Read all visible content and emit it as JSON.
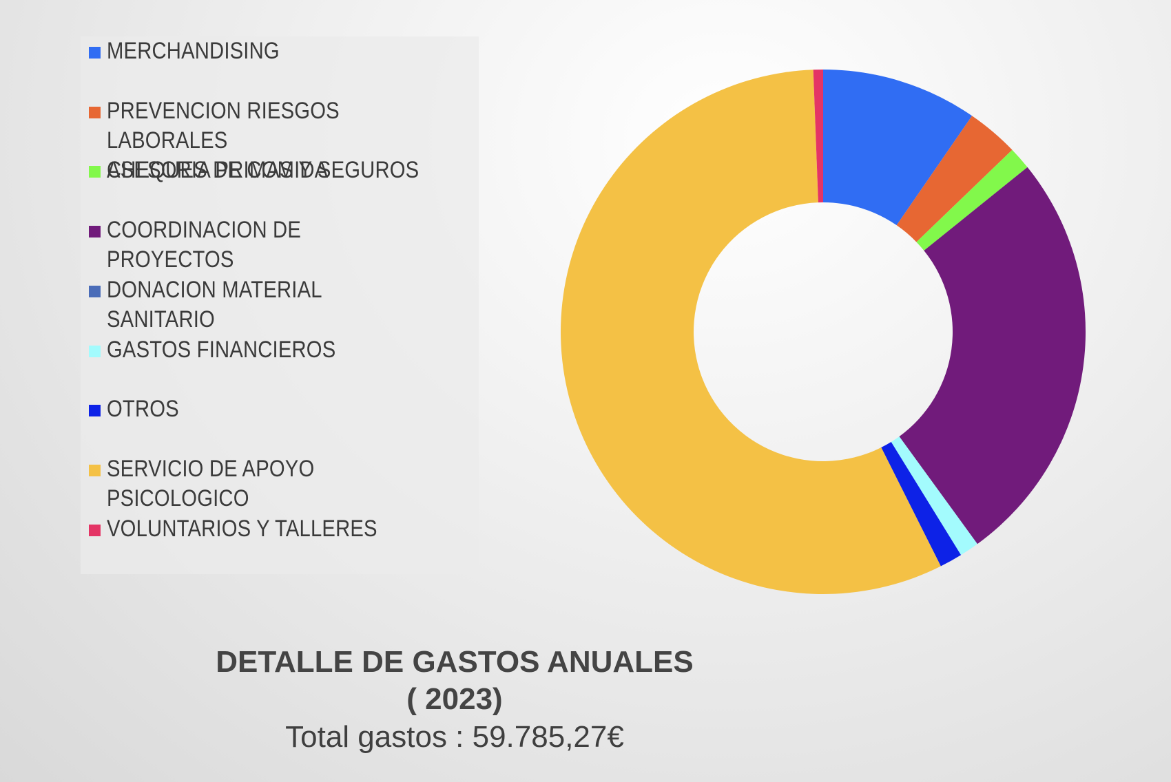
{
  "chart_data": {
    "type": "pie",
    "title": "DETALLE DE GASTOS ANUALES",
    "subtitle": "( 2023)",
    "total_text": "Total gastos : 59.785,27€",
    "legend_position": "left",
    "slices": [
      {
        "label": " MERCHANDISING",
        "value": 9.6,
        "color": "#306df3"
      },
      {
        "label": " PREVENCION RIESGOS LABORALES\nASESORIA PRIMAS Y SEGUROS",
        "value": 3.2,
        "color": "#e76733"
      },
      {
        "label": "CHEQUES DE COMIDA",
        "value": 1.4,
        "color": "#82f84b"
      },
      {
        "label": "COORDINACION DE PROYECTOS",
        "value": 25.8,
        "color": "#711b7b"
      },
      {
        "label": "DONACION MATERIAL SANITARIO",
        "value": 0.0,
        "color": "#4a6cb8"
      },
      {
        "label": "GASTOS FINANCIEROS",
        "value": 1.2,
        "color": "#a3fbfd"
      },
      {
        "label": "OTROS",
        "value": 1.4,
        "color": "#0d22e7"
      },
      {
        "label": "SERVICIO DE APOYO PSICOLOGICO",
        "value": 56.8,
        "color": "#f4c145"
      },
      {
        "label": "VOLUNTARIOS Y TALLERES",
        "value": 0.6,
        "color": "#e43465"
      }
    ]
  }
}
